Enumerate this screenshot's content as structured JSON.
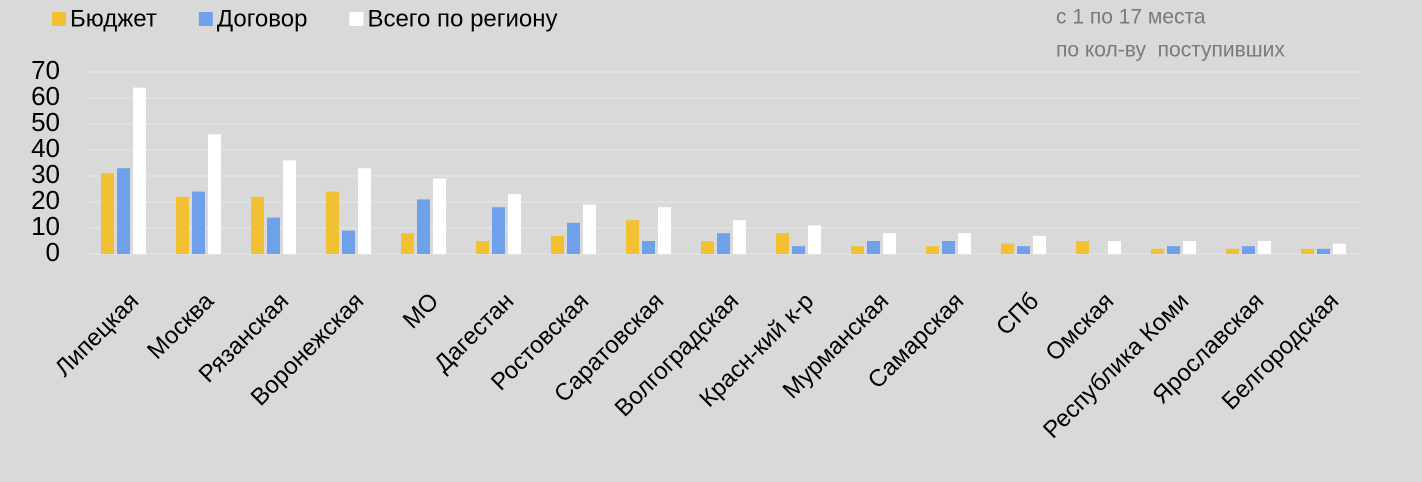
{
  "chart_data": {
    "type": "bar",
    "annotations": [
      "с 1 по 17 места",
      "по кол-ву  поступивших"
    ],
    "categories": [
      "Липецкая",
      "Москва",
      "Рязанская",
      "Воронежская",
      "МО",
      "Дагестан",
      "Ростовская",
      "Саратовская",
      "Волгоградская",
      "Красн-кий к-р",
      "Мурманская",
      "Самарская",
      "СПб",
      "Омская",
      "Республика Коми",
      "Ярославская",
      "Белгородская"
    ],
    "series": [
      {
        "name": "Бюджет",
        "color": "#f2c033",
        "values": [
          31,
          22,
          22,
          24,
          8,
          5,
          7,
          13,
          5,
          8,
          3,
          3,
          4,
          5,
          2,
          2,
          2
        ]
      },
      {
        "name": "Договор",
        "color": "#6ea1ea",
        "values": [
          33,
          24,
          14,
          9,
          21,
          18,
          12,
          5,
          8,
          3,
          5,
          5,
          3,
          0,
          3,
          3,
          2
        ]
      },
      {
        "name": "Всего по региону",
        "color": "#ffffff",
        "values": [
          64,
          46,
          36,
          33,
          29,
          23,
          19,
          18,
          13,
          11,
          8,
          8,
          7,
          5,
          5,
          5,
          4
        ]
      }
    ],
    "ylim": [
      0,
      70
    ],
    "yticks": [
      0,
      10,
      20,
      30,
      40,
      50,
      60,
      70
    ],
    "grid": true,
    "legend": "top-left"
  }
}
